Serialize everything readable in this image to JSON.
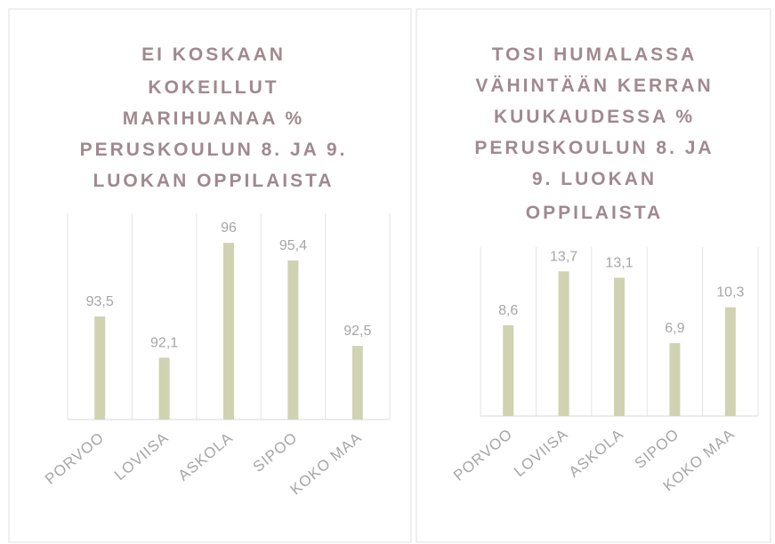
{
  "chart_data": [
    {
      "type": "bar",
      "title": [
        "EI KOSKAAN",
        "KOKEILLUT",
        "MARIHUANAA %",
        "PERUSKOULUN 8. JA 9.",
        "LUOKAN OPPILAISTA"
      ],
      "categories": [
        "PORVOO",
        "LOVIISA",
        "ASKOLA",
        "SIPOO",
        "KOKO MAA"
      ],
      "values": [
        93.5,
        92.1,
        96,
        95.4,
        92.5
      ],
      "value_labels": [
        "93,5",
        "92,1",
        "96",
        "95,4",
        "92,5"
      ],
      "color": "#cfd3b1",
      "ylim": [
        90,
        97
      ]
    },
    {
      "type": "bar",
      "title": [
        "TOSI HUMALASSA",
        "VÄHINTÄÄN KERRAN",
        "KUUKAUDESSA %",
        "PERUSKOULUN 8. JA",
        "9. LUOKAN",
        "OPPILAISTA"
      ],
      "categories": [
        "PORVOO",
        "LOVIISA",
        "ASKOLA",
        "SIPOO",
        "KOKO MAA"
      ],
      "values": [
        8.6,
        13.7,
        13.1,
        6.9,
        10.3
      ],
      "value_labels": [
        "8,6",
        "13,7",
        "13,1",
        "6,9",
        "10,3"
      ],
      "color": "#cfd3b1",
      "ylim": [
        0,
        16
      ]
    }
  ]
}
